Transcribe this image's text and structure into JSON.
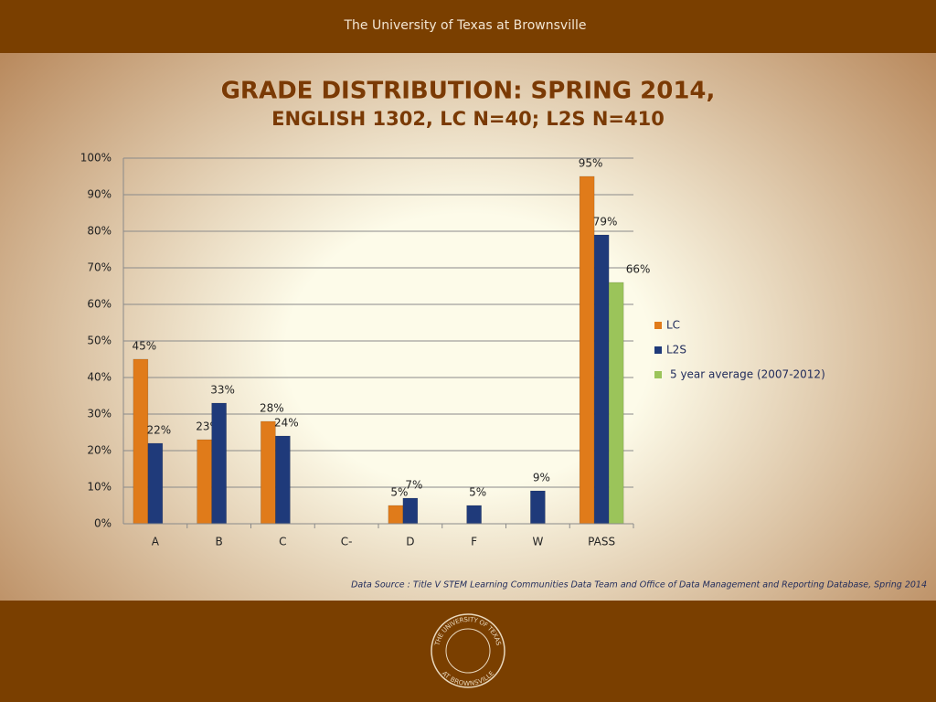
{
  "header": "The University of Texas at Brownsville",
  "chart_data": {
    "type": "bar",
    "title": "GRADE DISTRIBUTION: SPRING 2014,",
    "subtitle": "ENGLISH 1302, LC N=40; L2S N=410",
    "categories": [
      "A",
      "B",
      "C",
      "C-",
      "D",
      "F",
      "W",
      "PASS"
    ],
    "series": [
      {
        "name": "LC",
        "color": "#e07b1a",
        "values": [
          45,
          23,
          28,
          null,
          5,
          null,
          null,
          95
        ],
        "value_labels": [
          "45%",
          "23%",
          "28%",
          null,
          "5%",
          null,
          null,
          "95%"
        ]
      },
      {
        "name": "L2S",
        "color": "#1f3a7a",
        "values": [
          22,
          33,
          24,
          null,
          7,
          5,
          9,
          79
        ],
        "value_labels": [
          "22%",
          "33%",
          "24%",
          null,
          "7%",
          "5%",
          "9%",
          "79%"
        ]
      },
      {
        "name": "5 year average (2007-2012)",
        "color": "#9bc45a",
        "values": [
          null,
          null,
          null,
          null,
          null,
          null,
          null,
          66
        ],
        "value_labels": [
          null,
          null,
          null,
          null,
          null,
          null,
          null,
          "66%"
        ]
      }
    ],
    "ylim": [
      0,
      100
    ],
    "yticks": [
      {
        "value": 0,
        "label": "0%"
      },
      {
        "value": 10,
        "label": "10%"
      },
      {
        "value": 20,
        "label": "20%"
      },
      {
        "value": 30,
        "label": "30%"
      },
      {
        "value": 40,
        "label": "40%"
      },
      {
        "value": 50,
        "label": "50%"
      },
      {
        "value": 60,
        "label": "60%"
      },
      {
        "value": 70,
        "label": "70%"
      },
      {
        "value": 80,
        "label": "80%"
      },
      {
        "value": 90,
        "label": "90%"
      },
      {
        "value": 100,
        "label": "100%"
      }
    ],
    "grid": true,
    "legend": "right",
    "source": "Data Source : Title V STEM Learning Communities Data Team and  Office of Data Management and Reporting Database, Spring 2014"
  },
  "seal": {
    "top": "THE UNIVERSITY OF TEXAS",
    "bottom": "AT BROWNSVILLE"
  }
}
